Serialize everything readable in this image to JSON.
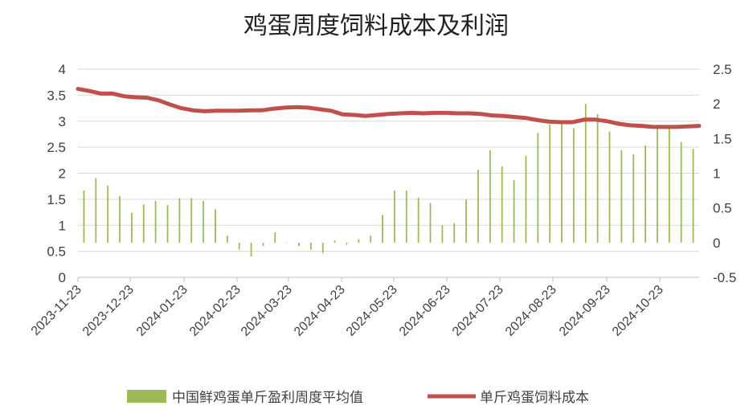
{
  "chart_data": {
    "type": "bar+line",
    "title": "鸡蛋周度饲料成本及利润",
    "x_tick_labels": [
      "2023-11-23",
      "2023-12-23",
      "2024-01-23",
      "2024-02-23",
      "2024-03-23",
      "2024-04-23",
      "2024-05-23",
      "2024-06-23",
      "2024-07-23",
      "2024-08-23",
      "2024-09-23",
      "2024-10-23"
    ],
    "left_axis": {
      "ylim": [
        0,
        4
      ],
      "ticks": [
        "0",
        "0.5",
        "1",
        "1.5",
        "2",
        "2.5",
        "3",
        "3.5",
        "4"
      ]
    },
    "right_axis": {
      "ylim": [
        -0.5,
        2.5
      ],
      "ticks": [
        "-0.5",
        "0",
        "0.5",
        "1",
        "1.5",
        "2",
        "2.5"
      ]
    },
    "legend": {
      "position": "bottom"
    },
    "colors": {
      "bar": "#9bbb59",
      "line": "#c0504d",
      "axis": "#bfbfbf"
    },
    "series": [
      {
        "name": "中国鲜鸡蛋单斤盈利周度平均值",
        "type": "bar",
        "axis": "right",
        "values": [
          0.75,
          0.93,
          0.82,
          0.67,
          0.43,
          0.55,
          0.6,
          0.54,
          0.64,
          0.64,
          0.6,
          0.48,
          0.1,
          -0.1,
          -0.2,
          -0.05,
          0.15,
          0,
          -0.05,
          -0.1,
          -0.15,
          0.03,
          -0.03,
          0.05,
          0.1,
          0.4,
          0.75,
          0.75,
          0.65,
          0.57,
          0.25,
          0.28,
          0.62,
          1.05,
          1.33,
          1.1,
          0.9,
          1.25,
          1.58,
          1.7,
          1.72,
          1.65,
          2.0,
          1.85,
          1.6,
          1.33,
          1.27,
          1.4,
          1.7,
          1.65,
          1.45,
          1.35
        ]
      },
      {
        "name": "单斤鸡蛋饲料成本",
        "type": "line",
        "axis": "left",
        "values": [
          3.62,
          3.58,
          3.53,
          3.53,
          3.48,
          3.46,
          3.45,
          3.4,
          3.32,
          3.25,
          3.21,
          3.19,
          3.2,
          3.2,
          3.2,
          3.21,
          3.21,
          3.24,
          3.26,
          3.27,
          3.26,
          3.23,
          3.2,
          3.13,
          3.12,
          3.1,
          3.12,
          3.14,
          3.15,
          3.16,
          3.15,
          3.16,
          3.16,
          3.15,
          3.15,
          3.14,
          3.11,
          3.1,
          3.08,
          3.06,
          3.02,
          2.99,
          2.98,
          2.98,
          3.03,
          3.03,
          3.0,
          2.95,
          2.92,
          2.91,
          2.89,
          2.89,
          2.89,
          2.9,
          2.91
        ]
      }
    ]
  }
}
